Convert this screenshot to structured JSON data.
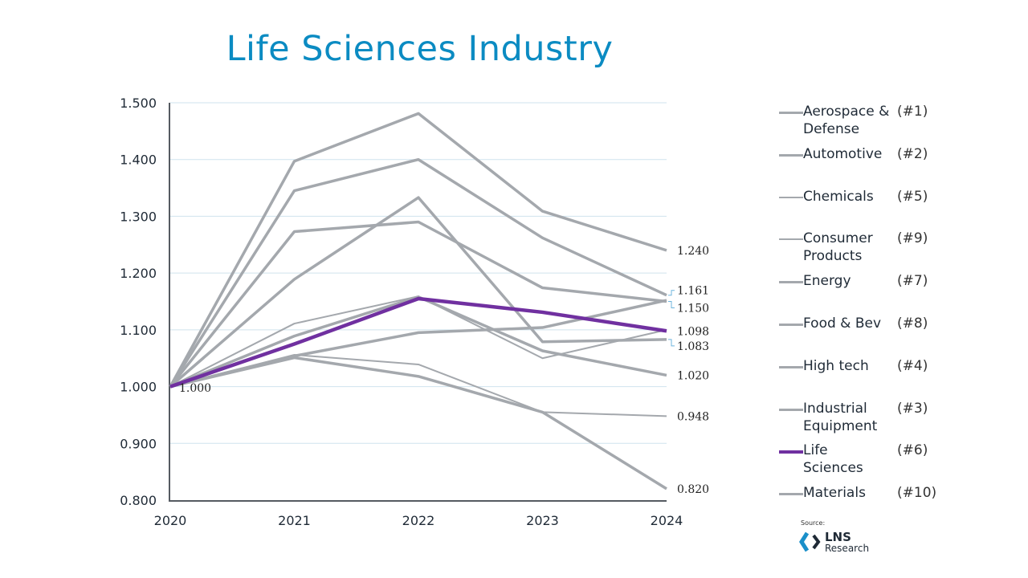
{
  "chart_data": {
    "type": "line",
    "title": "Life Sciences Industry",
    "x": [
      "2020",
      "2021",
      "2022",
      "2023",
      "2024"
    ],
    "ylim": [
      0.8,
      1.5
    ],
    "yticks": [
      "0.800",
      "0.900",
      "1.000",
      "1.100",
      "1.200",
      "1.300",
      "1.400",
      "1.500"
    ],
    "grid": true,
    "legend_placement": "right",
    "start_label": "1.000",
    "series": [
      {
        "name": "Aerospace & Defense",
        "rank": "(#1)",
        "color": "#a4a8ad",
        "width": "thick",
        "values": [
          1.0,
          1.397,
          1.481,
          1.309,
          1.24
        ]
      },
      {
        "name": "Automotive",
        "rank": "(#2)",
        "color": "#a4a8ad",
        "width": "thick",
        "values": [
          1.0,
          1.345,
          1.4,
          1.262,
          1.161
        ]
      },
      {
        "name": "Chemicals",
        "rank": "(#5)",
        "color": "#a4a8ad",
        "width": "thin",
        "values": [
          1.0,
          1.111,
          1.159,
          1.05,
          1.1
        ]
      },
      {
        "name": "Consumer Products",
        "rank": "(#9)",
        "color": "#a4a8ad",
        "width": "thin",
        "values": [
          1.0,
          1.056,
          1.039,
          0.955,
          0.948
        ]
      },
      {
        "name": "Energy",
        "rank": "(#7)",
        "color": "#a4a8ad",
        "width": "thick",
        "values": [
          1.0,
          1.189,
          1.333,
          1.079,
          1.083
        ]
      },
      {
        "name": "Food & Bev",
        "rank": "(#8)",
        "color": "#a4a8ad",
        "width": "thick",
        "values": [
          1.0,
          1.089,
          1.158,
          1.063,
          1.02
        ]
      },
      {
        "name": "High tech",
        "rank": "(#4)",
        "color": "#a4a8ad",
        "width": "thick",
        "values": [
          1.0,
          1.273,
          1.29,
          1.174,
          1.15
        ]
      },
      {
        "name": "Industrial Equipment",
        "rank": "(#3)",
        "color": "#a4a8ad",
        "width": "thick",
        "values": [
          1.0,
          1.054,
          1.095,
          1.104,
          1.152
        ]
      },
      {
        "name": "Life Sciences",
        "rank": "(#6)",
        "color": "#7030a0",
        "width": "highlight",
        "values": [
          1.0,
          1.075,
          1.155,
          1.131,
          1.098
        ]
      },
      {
        "name": "Materials",
        "rank": "(#10)",
        "color": "#a4a8ad",
        "width": "thick",
        "values": [
          1.0,
          1.051,
          1.018,
          0.955,
          0.82
        ]
      }
    ],
    "end_labels": [
      "1.240",
      "1.161",
      "1.150",
      "1.098",
      "1.083",
      "1.020",
      "0.948",
      "0.820"
    ]
  },
  "legend_display": [
    "Aerospace &\nDefense",
    "Automotive",
    "Chemicals",
    "Consumer\nProducts",
    "Energy",
    "Food & Bev",
    "High tech",
    "Industrial\nEquipment",
    "Life Sciences",
    "Materials"
  ],
  "source": {
    "label": "Source:",
    "logo_text": "LNS",
    "logo_subtext": "Research"
  }
}
